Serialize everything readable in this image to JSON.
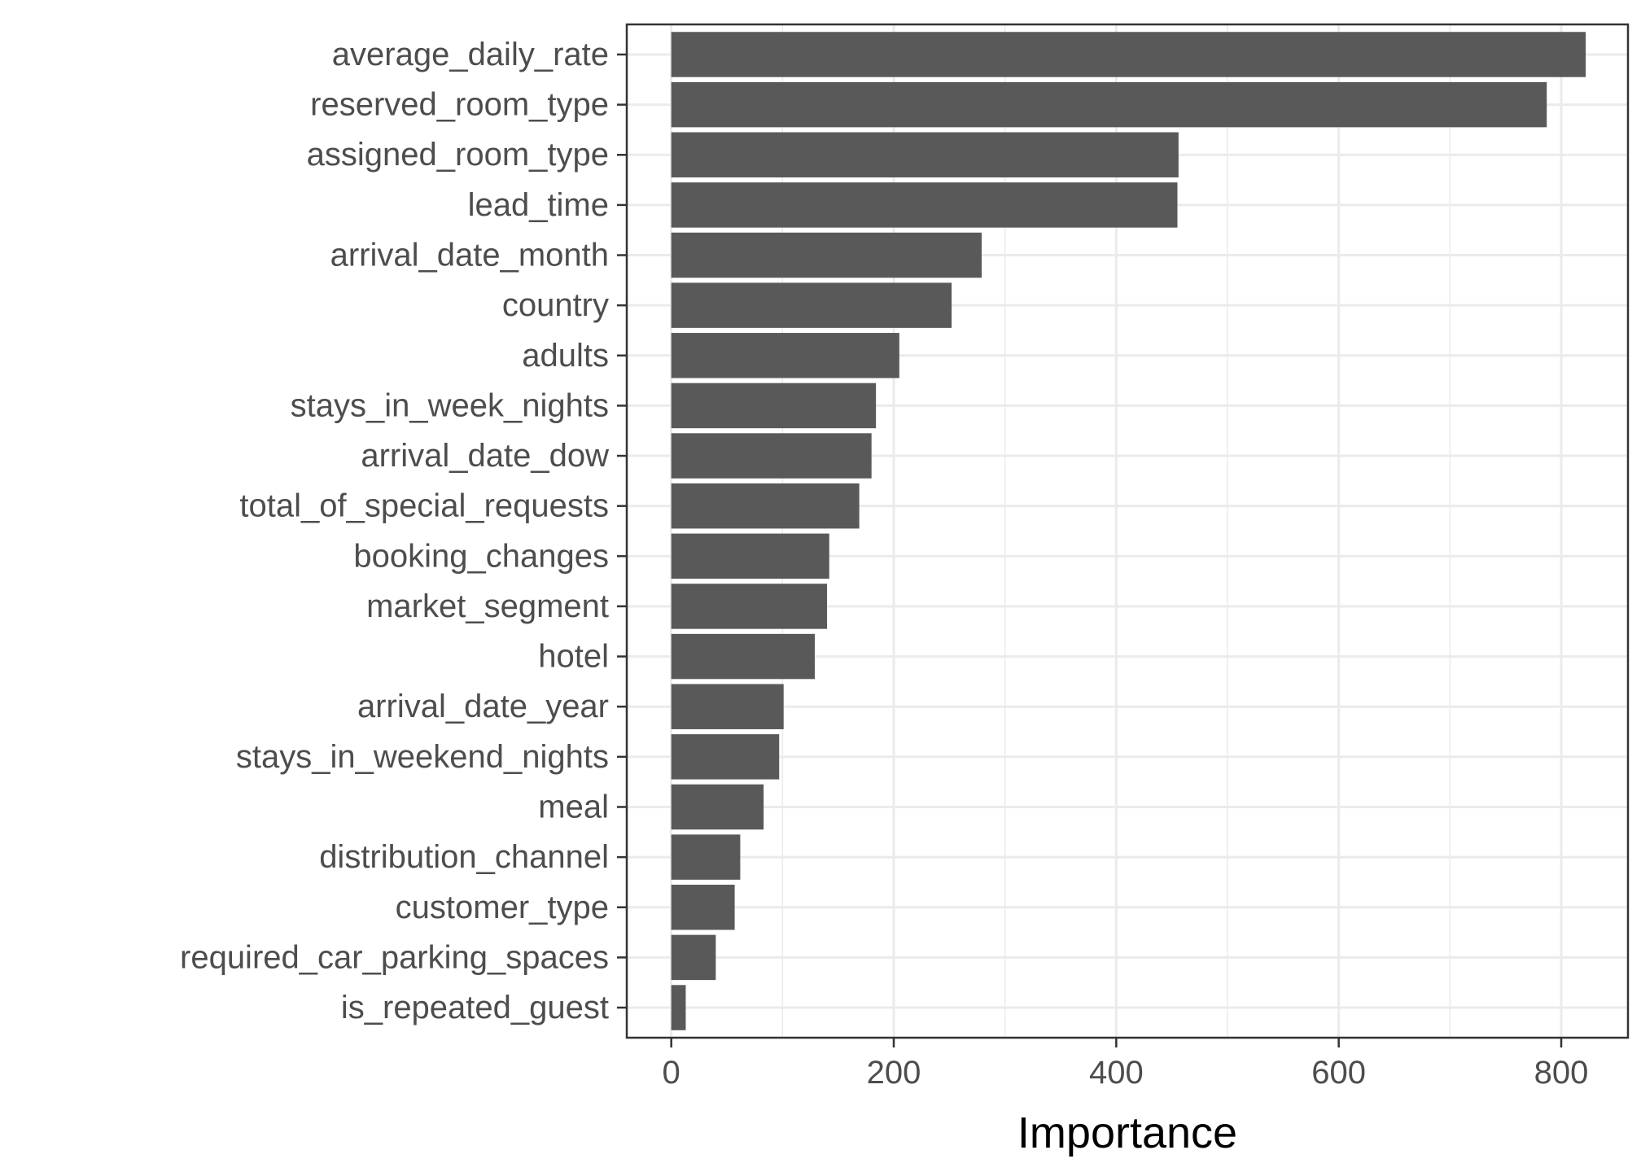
{
  "chart_data": {
    "type": "bar",
    "orientation": "horizontal",
    "title": "",
    "xlabel": "Importance",
    "ylabel": "",
    "xlim": [
      -40,
      860
    ],
    "x_ticks": [
      0,
      200,
      400,
      600,
      800
    ],
    "x_tick_labels": [
      "0",
      "200",
      "400",
      "600",
      "800"
    ],
    "grid": true,
    "legend": "none",
    "bar_color": "#595959",
    "panel_border_color": "#333333",
    "grid_color": "#ebebeb",
    "categories": [
      "average_daily_rate",
      "reserved_room_type",
      "assigned_room_type",
      "lead_time",
      "arrival_date_month",
      "country",
      "adults",
      "stays_in_week_nights",
      "arrival_date_dow",
      "total_of_special_requests",
      "booking_changes",
      "market_segment",
      "hotel",
      "arrival_date_year",
      "stays_in_weekend_nights",
      "meal",
      "distribution_channel",
      "customer_type",
      "required_car_parking_spaces",
      "is_repeated_guest"
    ],
    "values": [
      822,
      787,
      456,
      455,
      279,
      252,
      205,
      184,
      180,
      169,
      142,
      140,
      129,
      101,
      97,
      83,
      62,
      57,
      40,
      13
    ]
  }
}
